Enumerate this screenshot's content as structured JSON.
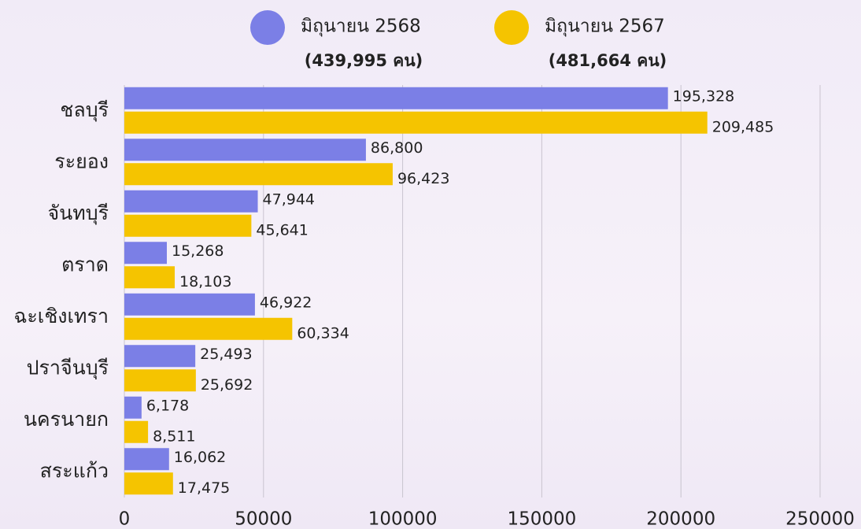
{
  "chart_data": {
    "type": "hbar",
    "categories": [
      "ชลบุรี",
      "ระยอง",
      "จันทบุรี",
      "ตราด",
      "ฉะเชิงเทรา",
      "ปราจีนบุรี",
      "นครนายก",
      "สระแก้ว"
    ],
    "series": [
      {
        "name": "มิถุนายน 2568",
        "subtitle": "(439,995 คน)",
        "color": "#7b7fe6",
        "values": [
          195328,
          86800,
          47944,
          15268,
          46922,
          25493,
          6178,
          16062
        ],
        "value_labels": [
          "195,328",
          "86,800",
          "47,944",
          "15,268",
          "46,922",
          "25,493",
          "6,178",
          "16,062"
        ]
      },
      {
        "name": "มิถุนายน 2567",
        "subtitle": "(481,664 คน)",
        "color": "#f5c400",
        "values": [
          209485,
          96423,
          45641,
          18103,
          60334,
          25692,
          8511,
          17475
        ],
        "value_labels": [
          "209,485",
          "96,423",
          "45,641",
          "18,103",
          "60,334",
          "25,692",
          "8,511",
          "17,475"
        ]
      }
    ],
    "xlim": [
      0,
      250000
    ],
    "xticks": [
      0,
      50000,
      100000,
      150000,
      200000,
      250000
    ],
    "grid": true
  }
}
